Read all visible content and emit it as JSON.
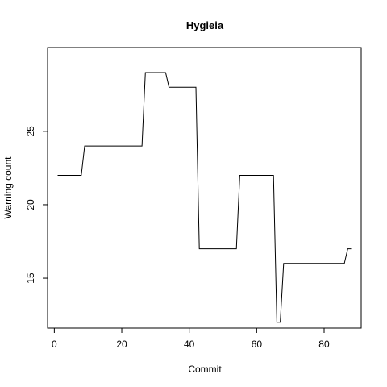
{
  "chart_data": {
    "type": "line",
    "title": "Hygieia",
    "xlabel": "Commit",
    "ylabel": "Warning count",
    "xlim": [
      -2,
      91
    ],
    "ylim": [
      11.6,
      30.7
    ],
    "xticks": [
      0,
      20,
      40,
      60,
      80
    ],
    "yticks": [
      15,
      20,
      25
    ],
    "line_color": "#000000",
    "series": [
      {
        "points": [
          [
            1,
            22
          ],
          [
            8,
            22
          ],
          [
            9,
            24
          ],
          [
            26,
            24
          ],
          [
            27,
            29
          ],
          [
            33,
            29
          ],
          [
            34,
            28
          ],
          [
            42,
            28
          ],
          [
            43,
            17
          ],
          [
            54,
            17
          ],
          [
            55,
            22
          ],
          [
            65,
            22
          ],
          [
            66,
            12
          ],
          [
            67,
            12
          ],
          [
            68,
            16
          ],
          [
            86,
            16
          ],
          [
            87,
            17
          ],
          [
            88,
            17
          ]
        ]
      }
    ]
  }
}
